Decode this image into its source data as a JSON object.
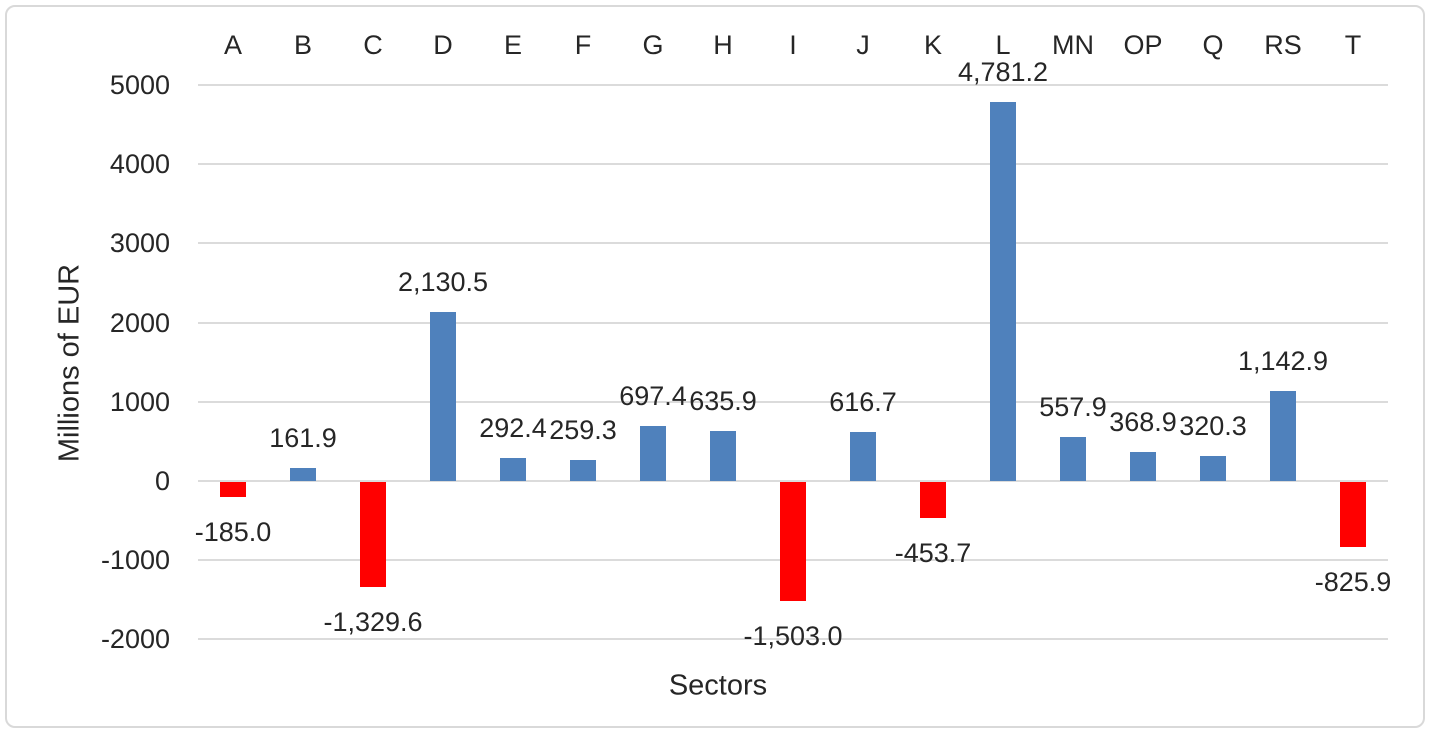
{
  "chart_data": {
    "type": "bar",
    "title": "",
    "xlabel": "Sectors",
    "ylabel": "Millions of EUR",
    "categories": [
      "A",
      "B",
      "C",
      "D",
      "E",
      "F",
      "G",
      "H",
      "I",
      "J",
      "K",
      "L",
      "MN",
      "OP",
      "Q",
      "RS",
      "T"
    ],
    "values": [
      -185.0,
      161.9,
      -1329.6,
      2130.5,
      292.4,
      259.3,
      697.4,
      635.9,
      -1503.0,
      616.7,
      -453.7,
      4781.2,
      557.9,
      368.9,
      320.3,
      1142.9,
      -825.9
    ],
    "value_labels": [
      "-185.0",
      "161.9",
      "-1,329.6",
      "2,130.5",
      "292.4",
      "259.3",
      "697.4",
      "635.9",
      "-1,503.0",
      "616.7",
      "-453.7",
      "4,781.2",
      "557.9",
      "368.9",
      "320.3",
      "1,142.9",
      "-825.9"
    ],
    "yticks": [
      5000,
      4000,
      3000,
      2000,
      1000,
      0,
      -1000,
      -2000
    ],
    "ytick_labels": [
      "5000",
      "4000",
      "3000",
      "2000",
      "1000",
      "0",
      "-1000",
      "-2000"
    ],
    "ylim": [
      -2000,
      5000
    ],
    "grid": true,
    "legend": "none",
    "category_axis_position": "top",
    "data_label_position": "outside-end",
    "positive_color": "#4F81BC",
    "negative_color": "#FF0000",
    "gridline_color": "#DBDBDB",
    "text_color": "#262626",
    "border_color": "#D9D9D9"
  }
}
